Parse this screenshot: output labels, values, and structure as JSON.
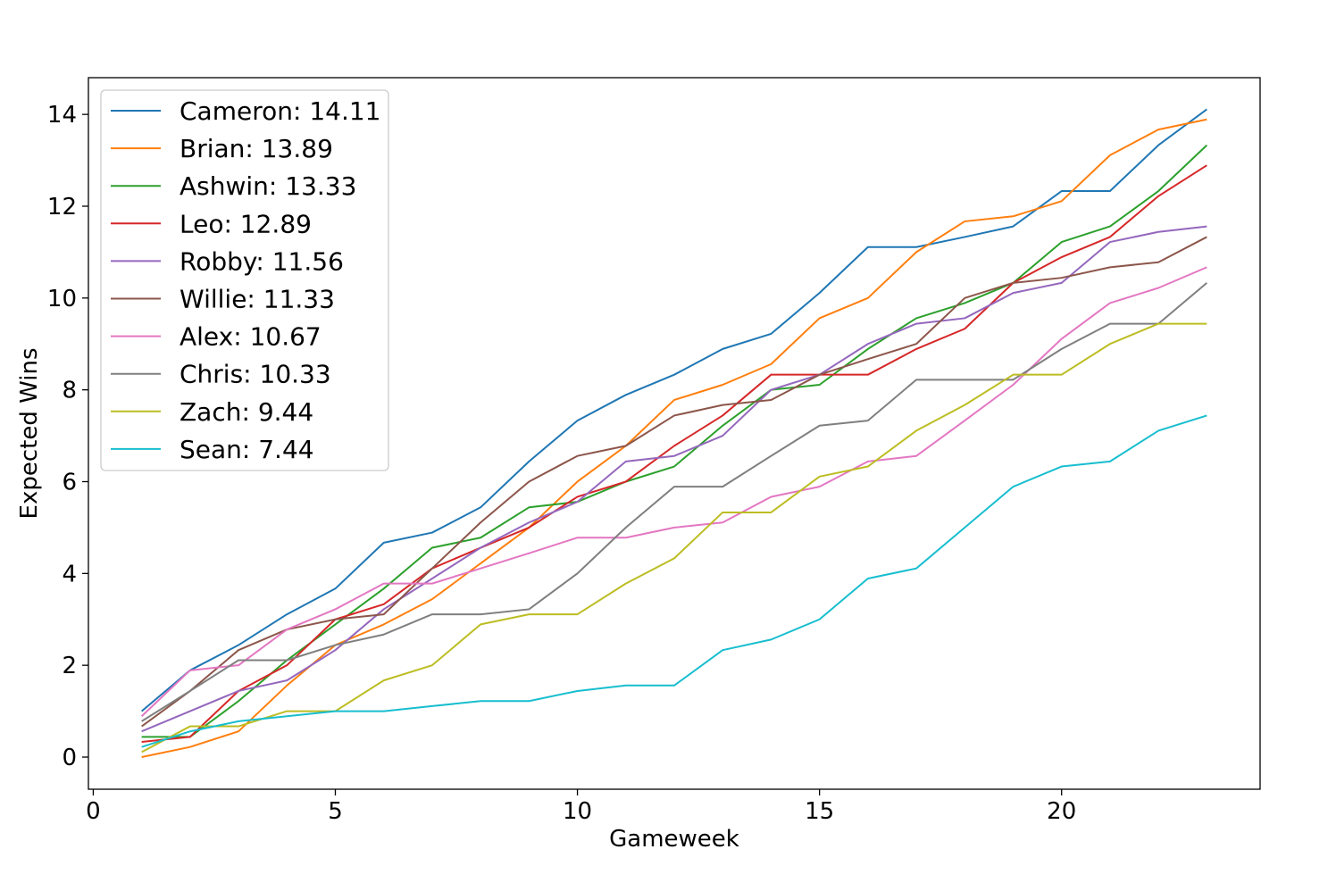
{
  "chart_data": {
    "type": "line",
    "title": "",
    "xlabel": "Gameweek",
    "ylabel": "Expected Wins",
    "xlim": [
      -0.1,
      24.1
    ],
    "ylim": [
      -0.7,
      14.8
    ],
    "xticks": [
      0,
      5,
      10,
      15,
      20
    ],
    "yticks": [
      0,
      2,
      4,
      6,
      8,
      10,
      12,
      14
    ],
    "grid": false,
    "legend_position": "upper-left",
    "x": [
      1,
      2,
      3,
      4,
      5,
      6,
      7,
      8,
      9,
      10,
      11,
      12,
      13,
      14,
      15,
      16,
      17,
      18,
      19,
      20,
      21,
      22,
      23
    ],
    "series": [
      {
        "name": "Cameron: 14.11",
        "color": "#1f77b4",
        "values": [
          1.0,
          1.89,
          2.44,
          3.11,
          3.67,
          4.67,
          4.89,
          5.44,
          6.44,
          7.33,
          7.89,
          8.33,
          8.89,
          9.22,
          10.11,
          11.11,
          11.11,
          11.33,
          11.56,
          12.33,
          12.33,
          13.33,
          14.11
        ]
      },
      {
        "name": "Brian: 13.89",
        "color": "#ff7f0e",
        "values": [
          0.0,
          0.22,
          0.56,
          1.56,
          2.44,
          2.89,
          3.44,
          4.22,
          5.0,
          6.0,
          6.78,
          7.78,
          8.11,
          8.56,
          9.56,
          10.0,
          11.0,
          11.67,
          11.78,
          12.11,
          13.11,
          13.67,
          13.89
        ]
      },
      {
        "name": "Ashwin: 13.33",
        "color": "#2ca02c",
        "values": [
          0.44,
          0.44,
          1.22,
          2.11,
          2.89,
          3.67,
          4.56,
          4.78,
          5.44,
          5.56,
          6.0,
          6.33,
          7.22,
          8.0,
          8.11,
          8.89,
          9.56,
          9.89,
          10.33,
          11.22,
          11.56,
          12.33,
          13.33
        ]
      },
      {
        "name": "Leo: 12.89",
        "color": "#d62728",
        "values": [
          0.33,
          0.44,
          1.44,
          2.0,
          3.0,
          3.33,
          4.11,
          4.56,
          5.0,
          5.67,
          6.0,
          6.78,
          7.44,
          8.33,
          8.33,
          8.33,
          8.89,
          9.33,
          10.33,
          10.89,
          11.33,
          12.22,
          12.89
        ]
      },
      {
        "name": "Robby: 11.56",
        "color": "#9467bd",
        "values": [
          0.56,
          1.0,
          1.44,
          1.67,
          2.33,
          3.22,
          3.89,
          4.56,
          5.11,
          5.56,
          6.44,
          6.56,
          7.0,
          8.0,
          8.33,
          9.0,
          9.44,
          9.56,
          10.11,
          10.33,
          11.22,
          11.44,
          11.56
        ]
      },
      {
        "name": "Willie: 11.33",
        "color": "#8c564b",
        "values": [
          0.67,
          1.44,
          2.33,
          2.78,
          3.0,
          3.11,
          4.11,
          5.11,
          6.0,
          6.56,
          6.78,
          7.44,
          7.67,
          7.78,
          8.33,
          8.67,
          9.0,
          10.0,
          10.33,
          10.44,
          10.67,
          10.78,
          11.33
        ]
      },
      {
        "name": "Alex: 10.67",
        "color": "#e377c2",
        "values": [
          0.89,
          1.89,
          2.0,
          2.78,
          3.22,
          3.78,
          3.78,
          4.11,
          4.44,
          4.78,
          4.78,
          5.0,
          5.11,
          5.67,
          5.89,
          6.44,
          6.56,
          7.33,
          8.11,
          9.11,
          9.89,
          10.22,
          10.67
        ]
      },
      {
        "name": "Chris: 10.33",
        "color": "#7f7f7f",
        "values": [
          0.78,
          1.44,
          2.11,
          2.11,
          2.44,
          2.67,
          3.11,
          3.11,
          3.22,
          4.0,
          5.0,
          5.89,
          5.89,
          6.56,
          7.22,
          7.33,
          8.22,
          8.22,
          8.22,
          8.89,
          9.44,
          9.44,
          10.33
        ]
      },
      {
        "name": "Zach: 9.44",
        "color": "#bcbd22",
        "values": [
          0.11,
          0.67,
          0.67,
          1.0,
          1.0,
          1.67,
          2.0,
          2.89,
          3.11,
          3.11,
          3.78,
          4.33,
          5.33,
          5.33,
          6.11,
          6.33,
          7.11,
          7.67,
          8.33,
          8.33,
          9.0,
          9.44,
          9.44
        ]
      },
      {
        "name": "Sean: 7.44",
        "color": "#17becf",
        "values": [
          0.22,
          0.56,
          0.78,
          0.89,
          1.0,
          1.0,
          1.11,
          1.22,
          1.22,
          1.44,
          1.56,
          1.56,
          2.33,
          2.56,
          3.0,
          3.89,
          4.11,
          5.0,
          5.89,
          6.33,
          6.44,
          7.11,
          7.44
        ]
      }
    ]
  }
}
